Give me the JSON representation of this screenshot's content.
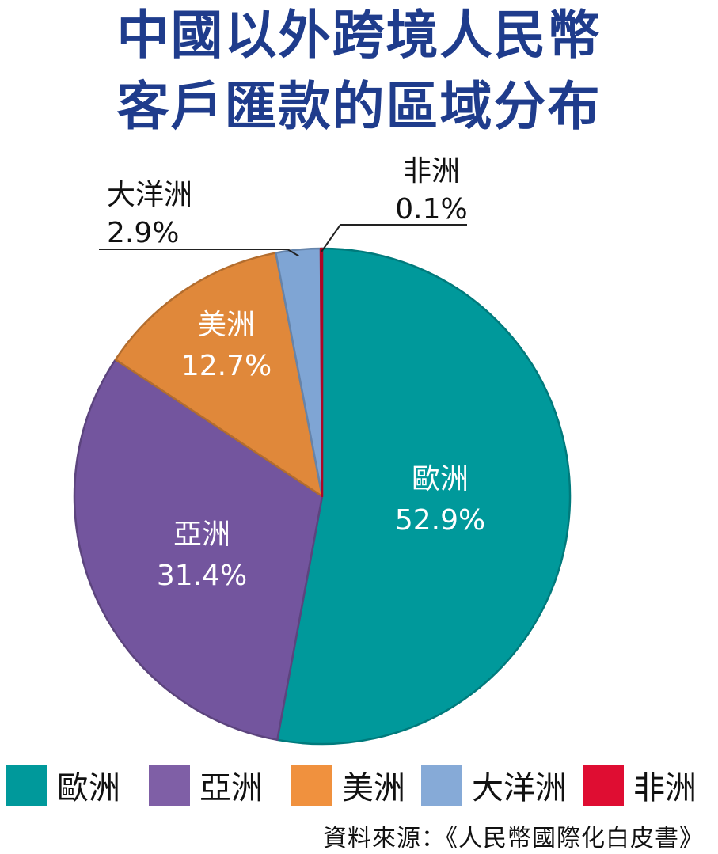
{
  "title_line1": "中國以外跨境人民幣",
  "title_line2": "客戶匯款的區域分布",
  "chart_data": {
    "type": "pie",
    "title": "中國以外跨境人民幣客戶匯款的區域分布",
    "slices": [
      {
        "name": "歐洲",
        "value": 52.9,
        "label": "52.9%",
        "color": "#00999b"
      },
      {
        "name": "亞洲",
        "value": 31.4,
        "label": "31.4%",
        "color": "#73559e"
      },
      {
        "name": "美洲",
        "value": 12.7,
        "label": "12.7%",
        "color": "#e0883a"
      },
      {
        "name": "大洋洲",
        "value": 2.9,
        "label": "2.9%",
        "color": "#7fa5d4"
      },
      {
        "name": "非洲",
        "value": 0.1,
        "label": "0.1%",
        "color": "#d9082e"
      }
    ],
    "legend": [
      "歐洲",
      "亞洲",
      "美洲",
      "大洋洲",
      "非洲"
    ],
    "legend_position": "bottom"
  },
  "source": "資料來源：《人民幣國際化白皮書》"
}
